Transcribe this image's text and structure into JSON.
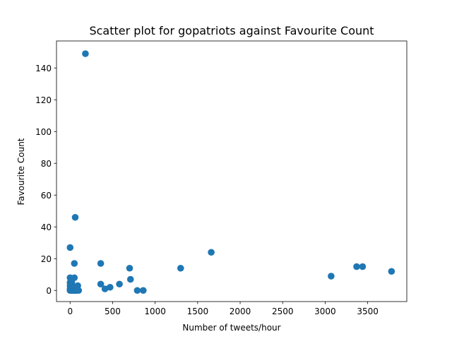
{
  "chart_data": {
    "type": "scatter",
    "title": "Scatter plot for gopatriots against Favourite Count",
    "xlabel": "Number of tweets/hour",
    "ylabel": "Favourite Count",
    "xlim": [
      -160,
      3960
    ],
    "ylim": [
      -7,
      157
    ],
    "xticks": [
      0,
      500,
      1000,
      1500,
      2000,
      2500,
      3000,
      3500
    ],
    "yticks": [
      0,
      20,
      40,
      60,
      80,
      100,
      120,
      140
    ],
    "grid": false,
    "legend": "none",
    "marker_color": "#1f77b4",
    "series": [
      {
        "points": [
          [
            180,
            149
          ],
          [
            60,
            46
          ],
          [
            0,
            27
          ],
          [
            50,
            17
          ],
          [
            360,
            17
          ],
          [
            1660,
            24
          ],
          [
            700,
            14
          ],
          [
            1300,
            14
          ],
          [
            3370,
            15
          ],
          [
            3440,
            15
          ],
          [
            3780,
            12
          ],
          [
            3070,
            9
          ],
          [
            710,
            7
          ],
          [
            0,
            8
          ],
          [
            50,
            8
          ],
          [
            20,
            5
          ],
          [
            0,
            5
          ],
          [
            360,
            4
          ],
          [
            580,
            4
          ],
          [
            0,
            3
          ],
          [
            90,
            3
          ],
          [
            20,
            2
          ],
          [
            60,
            2
          ],
          [
            470,
            2
          ],
          [
            410,
            1
          ],
          [
            0,
            1
          ],
          [
            30,
            1
          ],
          [
            0,
            0
          ],
          [
            10,
            0
          ],
          [
            20,
            0
          ],
          [
            30,
            0
          ],
          [
            40,
            0
          ],
          [
            50,
            0
          ],
          [
            60,
            0
          ],
          [
            70,
            0
          ],
          [
            80,
            0
          ],
          [
            100,
            0
          ],
          [
            790,
            0
          ],
          [
            860,
            0
          ]
        ]
      }
    ]
  }
}
